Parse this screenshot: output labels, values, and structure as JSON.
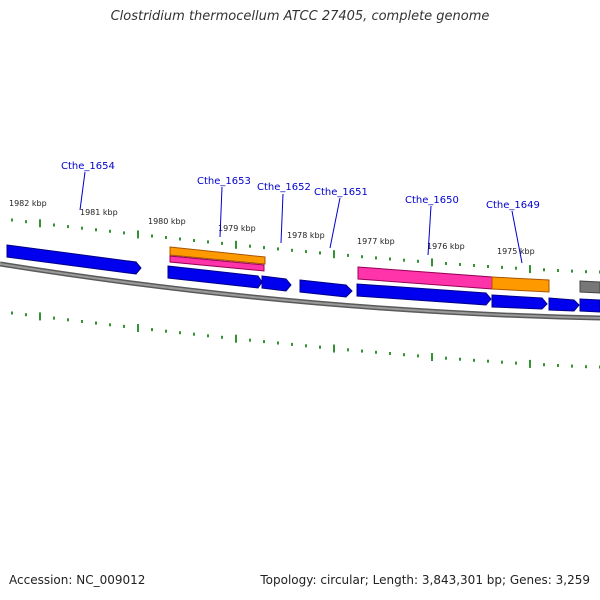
{
  "title": "Clostridium thermocellum ATCC 27405, complete genome",
  "accession": "Accession: NC_009012",
  "summary": "Topology: circular; Length: 3,843,301 bp; Genes: 3,259",
  "kbp_labels": [
    "1982 kbp",
    "1981 kbp",
    "1980 kbp",
    "1979 kbp",
    "1978 kbp",
    "1977 kbp",
    "1976 kbp",
    "1975 kbp"
  ],
  "gene_labels": [
    "Cthe_1654",
    "Cthe_1653",
    "Cthe_1652",
    "Cthe_1651",
    "Cthe_1650",
    "Cthe_1649"
  ],
  "colors": {
    "cds": "#0000ee",
    "rna": "#ff33aa",
    "gene_orange": "#ff9900",
    "backbone": "#808080",
    "ticks": "#007700",
    "gene_label": "#0000cc"
  }
}
